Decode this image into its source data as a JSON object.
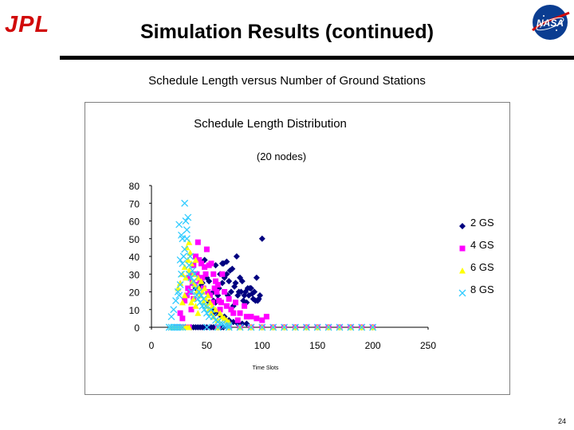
{
  "slide": {
    "title": "Simulation Results (continued)",
    "subtitle": "Schedule Length versus Number of Ground Stations",
    "logo_left": "JPL",
    "logo_right": "NASA",
    "page_number": "24"
  },
  "chart_data": {
    "type": "scatter",
    "title": "Schedule Length Distribution",
    "subtitle": "(20 nodes)",
    "xlabel": "Time Slots",
    "ylabel": "",
    "xlim": [
      0,
      250
    ],
    "ylim": [
      0,
      80
    ],
    "xticks": [
      0,
      50,
      100,
      150,
      200,
      250
    ],
    "yticks": [
      0,
      10,
      20,
      30,
      40,
      50,
      60,
      70,
      80
    ],
    "grid": false,
    "legend_position": "right",
    "series": [
      {
        "name": "2 GS",
        "marker": "diamond",
        "color": "#000080",
        "points": [
          [
            36,
            0
          ],
          [
            38,
            0
          ],
          [
            40,
            0
          ],
          [
            42,
            0
          ],
          [
            44,
            0
          ],
          [
            46,
            0
          ],
          [
            48,
            0
          ],
          [
            50,
            0
          ],
          [
            54,
            0
          ],
          [
            56,
            0
          ],
          [
            60,
            0
          ],
          [
            63,
            0
          ],
          [
            65,
            0
          ],
          [
            70,
            0
          ],
          [
            90,
            0
          ],
          [
            100,
            0
          ],
          [
            110,
            0
          ],
          [
            120,
            0
          ],
          [
            130,
            0
          ],
          [
            140,
            0
          ],
          [
            150,
            0
          ],
          [
            160,
            0
          ],
          [
            170,
            0
          ],
          [
            180,
            0
          ],
          [
            190,
            0
          ],
          [
            200,
            0
          ],
          [
            55,
            10
          ],
          [
            58,
            8
          ],
          [
            62,
            7
          ],
          [
            66,
            6
          ],
          [
            70,
            4
          ],
          [
            74,
            3
          ],
          [
            78,
            2
          ],
          [
            82,
            2
          ],
          [
            86,
            2
          ],
          [
            52,
            14
          ],
          [
            56,
            15
          ],
          [
            58,
            14
          ],
          [
            60,
            18
          ],
          [
            61,
            22
          ],
          [
            64,
            25
          ],
          [
            66,
            28
          ],
          [
            68,
            30
          ],
          [
            70,
            26
          ],
          [
            72,
            20
          ],
          [
            73,
            33
          ],
          [
            74,
            12
          ],
          [
            75,
            23
          ],
          [
            76,
            25
          ],
          [
            77,
            40
          ],
          [
            78,
            18
          ],
          [
            79,
            20
          ],
          [
            80,
            28
          ],
          [
            81,
            20
          ],
          [
            82,
            26
          ],
          [
            83,
            15
          ],
          [
            84,
            18
          ],
          [
            85,
            20
          ],
          [
            86,
            14
          ],
          [
            87,
            22
          ],
          [
            88,
            18
          ],
          [
            89,
            22
          ],
          [
            90,
            22
          ],
          [
            91,
            19
          ],
          [
            92,
            16
          ],
          [
            93,
            20
          ],
          [
            94,
            15
          ],
          [
            95,
            28
          ],
          [
            96,
            15
          ],
          [
            97,
            16
          ],
          [
            98,
            18
          ],
          [
            100,
            50
          ],
          [
            56,
            20
          ],
          [
            58,
            35
          ],
          [
            62,
            30
          ],
          [
            64,
            36
          ],
          [
            65,
            36
          ],
          [
            68,
            37
          ],
          [
            69,
            18
          ],
          [
            71,
            32
          ],
          [
            48,
            38
          ],
          [
            40,
            22
          ],
          [
            44,
            23
          ],
          [
            46,
            25
          ],
          [
            50,
            28
          ],
          [
            52,
            26
          ]
        ]
      },
      {
        "name": "4 GS",
        "marker": "square",
        "color": "#FF00FF",
        "points": [
          [
            22,
            0
          ],
          [
            24,
            0
          ],
          [
            26,
            0
          ],
          [
            28,
            0
          ],
          [
            30,
            0
          ],
          [
            32,
            0
          ],
          [
            34,
            0
          ],
          [
            60,
            0
          ],
          [
            70,
            0
          ],
          [
            80,
            0
          ],
          [
            90,
            0
          ],
          [
            100,
            0
          ],
          [
            110,
            0
          ],
          [
            120,
            0
          ],
          [
            130,
            0
          ],
          [
            140,
            0
          ],
          [
            150,
            0
          ],
          [
            160,
            0
          ],
          [
            170,
            0
          ],
          [
            180,
            0
          ],
          [
            190,
            0
          ],
          [
            200,
            0
          ],
          [
            30,
            15
          ],
          [
            32,
            18
          ],
          [
            33,
            22
          ],
          [
            34,
            28
          ],
          [
            35,
            20
          ],
          [
            36,
            30
          ],
          [
            37,
            25
          ],
          [
            38,
            35
          ],
          [
            39,
            24
          ],
          [
            40,
            40
          ],
          [
            41,
            30
          ],
          [
            42,
            48
          ],
          [
            43,
            38
          ],
          [
            44,
            26
          ],
          [
            45,
            36
          ],
          [
            46,
            28
          ],
          [
            47,
            22
          ],
          [
            48,
            34
          ],
          [
            49,
            30
          ],
          [
            50,
            44
          ],
          [
            51,
            20
          ],
          [
            52,
            35
          ],
          [
            53,
            18
          ],
          [
            54,
            36
          ],
          [
            55,
            14
          ],
          [
            56,
            30
          ],
          [
            57,
            22
          ],
          [
            58,
            26
          ],
          [
            59,
            20
          ],
          [
            60,
            24
          ],
          [
            61,
            15
          ],
          [
            62,
            10
          ],
          [
            63,
            14
          ],
          [
            64,
            30
          ],
          [
            66,
            20
          ],
          [
            68,
            12
          ],
          [
            70,
            16
          ],
          [
            72,
            10
          ],
          [
            74,
            8
          ],
          [
            76,
            14
          ],
          [
            78,
            4
          ],
          [
            80,
            8
          ],
          [
            84,
            12
          ],
          [
            86,
            6
          ],
          [
            90,
            6
          ],
          [
            95,
            5
          ],
          [
            100,
            4
          ],
          [
            104,
            6
          ],
          [
            36,
            10
          ],
          [
            38,
            16
          ],
          [
            28,
            5
          ],
          [
            26,
            8
          ]
        ]
      },
      {
        "name": "6 GS",
        "marker": "triangle",
        "color": "#FFFF00",
        "points": [
          [
            18,
            0
          ],
          [
            20,
            0
          ],
          [
            22,
            0
          ],
          [
            24,
            0
          ],
          [
            26,
            0
          ],
          [
            28,
            0
          ],
          [
            30,
            0
          ],
          [
            32,
            0
          ],
          [
            34,
            0
          ],
          [
            60,
            0
          ],
          [
            70,
            0
          ],
          [
            80,
            0
          ],
          [
            90,
            0
          ],
          [
            100,
            0
          ],
          [
            110,
            0
          ],
          [
            120,
            0
          ],
          [
            130,
            0
          ],
          [
            140,
            0
          ],
          [
            150,
            0
          ],
          [
            160,
            0
          ],
          [
            170,
            0
          ],
          [
            180,
            0
          ],
          [
            190,
            0
          ],
          [
            200,
            0
          ],
          [
            24,
            22
          ],
          [
            26,
            25
          ],
          [
            28,
            30
          ],
          [
            30,
            34
          ],
          [
            31,
            28
          ],
          [
            32,
            45
          ],
          [
            33,
            38
          ],
          [
            34,
            32
          ],
          [
            35,
            42
          ],
          [
            36,
            36
          ],
          [
            37,
            26
          ],
          [
            38,
            30
          ],
          [
            39,
            24
          ],
          [
            40,
            38
          ],
          [
            41,
            20
          ],
          [
            42,
            28
          ],
          [
            43,
            22
          ],
          [
            44,
            18
          ],
          [
            45,
            26
          ],
          [
            46,
            20
          ],
          [
            47,
            14
          ],
          [
            48,
            22
          ],
          [
            49,
            16
          ],
          [
            50,
            12
          ],
          [
            51,
            18
          ],
          [
            52,
            10
          ],
          [
            53,
            14
          ],
          [
            54,
            8
          ],
          [
            55,
            12
          ],
          [
            56,
            6
          ],
          [
            58,
            10
          ],
          [
            60,
            4
          ],
          [
            62,
            8
          ],
          [
            64,
            6
          ],
          [
            66,
            5
          ],
          [
            68,
            4
          ],
          [
            70,
            3
          ],
          [
            34,
            48
          ],
          [
            36,
            14
          ],
          [
            38,
            16
          ],
          [
            40,
            12
          ],
          [
            42,
            8
          ],
          [
            30,
            18
          ],
          [
            28,
            14
          ]
        ]
      },
      {
        "name": "8 GS",
        "marker": "x",
        "color": "#33CCFF",
        "points": [
          [
            16,
            0
          ],
          [
            18,
            0
          ],
          [
            20,
            0
          ],
          [
            22,
            0
          ],
          [
            24,
            0
          ],
          [
            26,
            0
          ],
          [
            28,
            0
          ],
          [
            50,
            0
          ],
          [
            60,
            0
          ],
          [
            70,
            0
          ],
          [
            80,
            0
          ],
          [
            90,
            0
          ],
          [
            100,
            0
          ],
          [
            110,
            0
          ],
          [
            120,
            0
          ],
          [
            130,
            0
          ],
          [
            140,
            0
          ],
          [
            150,
            0
          ],
          [
            160,
            0
          ],
          [
            170,
            0
          ],
          [
            180,
            0
          ],
          [
            190,
            0
          ],
          [
            200,
            0
          ],
          [
            18,
            6
          ],
          [
            20,
            10
          ],
          [
            22,
            15
          ],
          [
            24,
            20
          ],
          [
            25,
            18
          ],
          [
            26,
            24
          ],
          [
            27,
            30
          ],
          [
            28,
            36
          ],
          [
            29,
            40
          ],
          [
            30,
            70
          ],
          [
            31,
            60
          ],
          [
            32,
            55
          ],
          [
            33,
            62
          ],
          [
            34,
            35
          ],
          [
            35,
            40
          ],
          [
            36,
            28
          ],
          [
            37,
            32
          ],
          [
            38,
            26
          ],
          [
            39,
            30
          ],
          [
            40,
            22
          ],
          [
            41,
            18
          ],
          [
            42,
            16
          ],
          [
            43,
            20
          ],
          [
            44,
            14
          ],
          [
            45,
            18
          ],
          [
            46,
            12
          ],
          [
            47,
            16
          ],
          [
            48,
            10
          ],
          [
            49,
            12
          ],
          [
            50,
            8
          ],
          [
            52,
            6
          ],
          [
            54,
            10
          ],
          [
            56,
            6
          ],
          [
            58,
            4
          ],
          [
            60,
            3
          ],
          [
            62,
            2
          ],
          [
            64,
            2
          ],
          [
            66,
            1
          ],
          [
            68,
            1
          ],
          [
            70,
            1
          ],
          [
            25,
            58
          ],
          [
            27,
            52
          ],
          [
            28,
            50
          ],
          [
            26,
            38
          ],
          [
            30,
            44
          ],
          [
            32,
            50
          ],
          [
            34,
            30
          ],
          [
            36,
            20
          ]
        ]
      }
    ]
  }
}
